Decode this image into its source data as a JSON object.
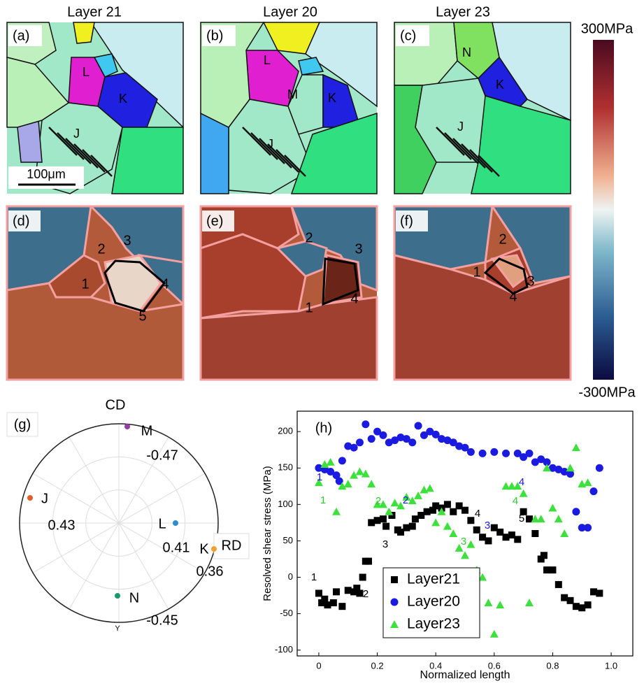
{
  "maps": {
    "column_titles": [
      "Layer 21",
      "Layer 20",
      "Layer 23"
    ],
    "orientation_panels": [
      {
        "label": "(a)",
        "grains": [
          "L",
          "K",
          "J"
        ]
      },
      {
        "label": "(b)",
        "grains": [
          "L",
          "M",
          "K",
          "J"
        ]
      },
      {
        "label": "(c)",
        "grains": [
          "N",
          "K",
          "J"
        ]
      }
    ],
    "scale_bar": "100μm",
    "stress_panels": [
      {
        "label": "(d)",
        "points": [
          3,
          2,
          1,
          4,
          5
        ]
      },
      {
        "label": "(e)",
        "points": [
          2,
          3,
          1,
          4
        ]
      },
      {
        "label": "(f)",
        "points": [
          2,
          1,
          3,
          4
        ]
      }
    ],
    "colorbar": {
      "max_label": "300MPa",
      "min_label": "-300MPa"
    }
  },
  "pole_figure": {
    "label": "(g)",
    "axes": [
      "CD",
      "RD",
      "Y"
    ],
    "points": [
      {
        "name": "M",
        "value": -0.47,
        "color": "#8e3fa0"
      },
      {
        "name": "J",
        "value": 0.43,
        "color": "#e0602a"
      },
      {
        "name": "L",
        "value": 0.41,
        "color": "#2e8ccf"
      },
      {
        "name": "K",
        "value": 0.36,
        "color": "#f0a030"
      },
      {
        "name": "N",
        "value": -0.45,
        "color": "#1a9a6a"
      }
    ]
  },
  "chart_data": {
    "type": "scatter",
    "label": "(h)",
    "x_label": "Normalized length",
    "y_label": "Resolved shear stress (MPa)",
    "xlim": [
      -0.074,
      1.074
    ],
    "ylim": [
      -108,
      228
    ],
    "xticks": [
      0,
      0.2,
      0.4,
      0.6,
      0.8,
      {
        "value": 1,
        "label": "1.0"
      }
    ],
    "yticks": [
      -100,
      -50,
      0,
      50,
      100,
      150,
      200
    ],
    "legend": "lower-left",
    "series": [
      {
        "name": "Layer21",
        "color": "#000000",
        "marker": "square",
        "x": [
          0,
          0.01,
          0.02,
          0.03,
          0.05,
          0.06,
          0.08,
          0.1,
          0.12,
          0.13,
          0.14,
          0.15,
          0.16,
          0.17,
          0.18,
          0.2,
          0.22,
          0.23,
          0.25,
          0.27,
          0.28,
          0.3,
          0.32,
          0.33,
          0.35,
          0.37,
          0.39,
          0.4,
          0.42,
          0.44,
          0.46,
          0.48,
          0.5,
          0.52,
          0.54,
          0.56,
          0.58,
          0.6,
          0.62,
          0.64,
          0.66,
          0.68,
          0.7,
          0.72,
          0.74,
          0.76,
          0.77,
          0.78,
          0.8,
          0.82,
          0.84,
          0.86,
          0.88,
          0.9,
          0.92,
          0.94,
          0.96
        ],
        "values": [
          -22,
          -35,
          -30,
          -38,
          -35,
          -20,
          -40,
          -18,
          -20,
          -15,
          -22,
          0,
          22,
          22,
          75,
          78,
          80,
          70,
          85,
          65,
          62,
          68,
          70,
          80,
          85,
          90,
          92,
          98,
          95,
          100,
          90,
          98,
          92,
          78,
          65,
          55,
          50,
          68,
          62,
          55,
          58,
          52,
          90,
          80,
          60,
          25,
          30,
          10,
          10,
          -10,
          -28,
          -32,
          -40,
          -42,
          -38,
          -20,
          -22
        ],
        "annotations": [
          "1",
          "2",
          "3",
          "4",
          "5"
        ]
      },
      {
        "name": "Layer20",
        "color": "#1a1ae0",
        "marker": "circle",
        "x": [
          0,
          0.02,
          0.04,
          0.06,
          0.07,
          0.08,
          0.1,
          0.12,
          0.14,
          0.16,
          0.18,
          0.2,
          0.22,
          0.24,
          0.26,
          0.28,
          0.3,
          0.32,
          0.34,
          0.36,
          0.38,
          0.4,
          0.42,
          0.44,
          0.46,
          0.48,
          0.5,
          0.52,
          0.56,
          0.6,
          0.64,
          0.68,
          0.7,
          0.72,
          0.74,
          0.76,
          0.78,
          0.8,
          0.82,
          0.84,
          0.86,
          0.88,
          0.9,
          0.92,
          0.94,
          0.96
        ],
        "values": [
          150,
          148,
          145,
          140,
          132,
          160,
          180,
          178,
          185,
          210,
          190,
          200,
          195,
          185,
          188,
          192,
          190,
          185,
          208,
          195,
          200,
          196,
          190,
          188,
          185,
          180,
          178,
          172,
          170,
          172,
          170,
          170,
          165,
          170,
          158,
          162,
          158,
          150,
          148,
          145,
          142,
          90,
          68,
          68,
          118,
          150
        ],
        "annotations": [
          "1",
          "2",
          "3",
          "4"
        ]
      },
      {
        "name": "Layer23",
        "color": "#3ee03e",
        "marker": "triangle",
        "x": [
          0,
          0.02,
          0.04,
          0.06,
          0.08,
          0.1,
          0.12,
          0.14,
          0.16,
          0.18,
          0.2,
          0.22,
          0.24,
          0.26,
          0.28,
          0.3,
          0.32,
          0.34,
          0.36,
          0.38,
          0.4,
          0.42,
          0.44,
          0.46,
          0.48,
          0.5,
          0.52,
          0.54,
          0.56,
          0.58,
          0.6,
          0.62,
          0.64,
          0.66,
          0.68,
          0.7,
          0.72,
          0.74,
          0.76,
          0.78,
          0.8,
          0.82,
          0.84,
          0.86,
          0.88,
          0.9,
          0.92
        ],
        "values": [
          130,
          155,
          158,
          90,
          125,
          128,
          140,
          145,
          142,
          128,
          100,
          100,
          90,
          102,
          98,
          110,
          105,
          112,
          120,
          122,
          75,
          90,
          70,
          60,
          40,
          30,
          45,
          10,
          0,
          -35,
          -78,
          -38,
          125,
          125,
          125,
          115,
          -35,
          80,
          80,
          150,
          95,
          80,
          60,
          150,
          178,
          128,
          130
        ],
        "annotations": [
          "1",
          "2",
          "3",
          "4"
        ]
      }
    ]
  }
}
